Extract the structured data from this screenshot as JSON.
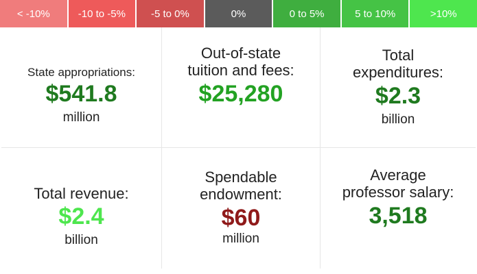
{
  "legend": {
    "items": [
      {
        "label": "< -10%",
        "color": "#f07c7c"
      },
      {
        "label": "-10 to -5%",
        "color": "#ee5a5a"
      },
      {
        "label": "-5 to 0%",
        "color": "#cf5050"
      },
      {
        "label": "0%",
        "color": "#5b5b5b"
      },
      {
        "label": "0 to 5%",
        "color": "#3fae3f"
      },
      {
        "label": "5 to 10%",
        "color": "#45c345"
      },
      {
        "label": ">10%",
        "color": "#4ee64e"
      }
    ]
  },
  "stats": {
    "state_appropriations": {
      "label": "State appropriations:",
      "value": "$541.8",
      "unit": "million",
      "color": "#1f7a1f"
    },
    "out_of_state_tuition": {
      "label_line1": "Out-of-state",
      "label_line2": "tuition and fees:",
      "value": "$25,280",
      "color": "#23a223"
    },
    "total_expenditures": {
      "label_line1": "Total",
      "label_line2": "expenditures:",
      "value": "$2.3",
      "unit": "billion",
      "color": "#1f7a1f"
    },
    "total_revenue": {
      "label": "Total revenue:",
      "value": "$2.4",
      "unit": "billion",
      "color": "#4ee64e"
    },
    "spendable_endowment": {
      "label_line1": "Spendable",
      "label_line2": "endowment:",
      "value": "$60",
      "unit": "million",
      "color": "#8f1a1a"
    },
    "average_professor_salary": {
      "label_line1": "Average",
      "label_line2": "professor salary:",
      "value": "3,518",
      "color": "#1f7a1f"
    }
  }
}
